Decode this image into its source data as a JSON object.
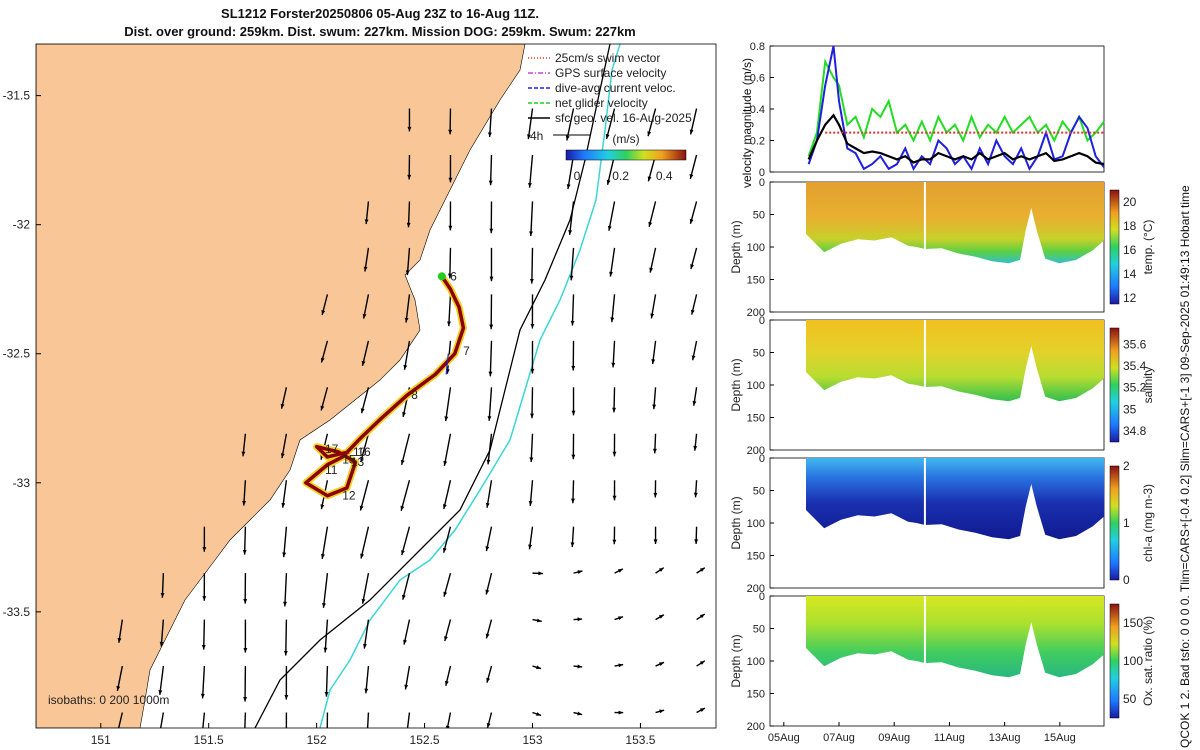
{
  "header": {
    "title_line1": "SL1212 Forster20250806 05-Aug 23Z to 16-Aug 11Z.",
    "title_line2": "Dist. over ground: 259km. Dist. swum: 227km. Mission DOG: 259km. Swum: 227km"
  },
  "side_note": "QCOK 1  2. Bad tsfo: 0  0  0  0. Tlim=CARS+[-0.4 0.2] Slim=CARS+[-1 3] 09-Sep-2025 01:49:13 Hobart time",
  "colors": {
    "land": "#f9c797",
    "sea": "#ffffff",
    "track_hot": "#8b0000",
    "track_warm": "#f0b020",
    "track_green": "#22cc22",
    "cyan_isobath": "#3ad6d6"
  },
  "chart_data": [
    {
      "type": "map",
      "name": "track-map",
      "x_ticks": [
        "151",
        "151.5",
        "152",
        "152.5",
        "153",
        "153.5"
      ],
      "x_tick_values": [
        151,
        151.5,
        152,
        152.5,
        153,
        153.5
      ],
      "y_ticks": [
        "-31.5",
        "-32",
        "-32.5",
        "-33",
        "-33.5"
      ],
      "y_tick_values": [
        -31.5,
        -32,
        -32.5,
        -33,
        -33.5
      ],
      "xlim": [
        150.7,
        153.85
      ],
      "ylim": [
        -33.95,
        -31.3
      ],
      "legend": [
        {
          "label": "25cm/s swim vector",
          "color": "#e03030",
          "style": "dotted"
        },
        {
          "label": "GPS surface velocity",
          "color": "#d040d0",
          "style": "dashdot"
        },
        {
          "label": "dive-avg current veloc.",
          "color": "#2020e0",
          "style": "dashed"
        },
        {
          "label": "net glider velocity",
          "color": "#22cc22",
          "style": "dashed"
        },
        {
          "label": "sfc geo. vel. 16-Aug-2025",
          "color": "#000000",
          "style": "arrow"
        }
      ],
      "scale_arrow_label": "4h",
      "colorbar": {
        "unit": "(m/s)",
        "ticks": [
          "0",
          "0.2",
          "0.4"
        ],
        "tick_values": [
          0,
          0.2,
          0.4
        ],
        "range": [
          -0.05,
          0.5
        ]
      },
      "isobath_label": "isobaths: 0  200  1000m",
      "waypoints": [
        {
          "label": "6",
          "lon": 152.6,
          "lat": -32.2
        },
        {
          "label": "7",
          "lon": 152.66,
          "lat": -32.49
        },
        {
          "label": "8",
          "lon": 152.42,
          "lat": -32.66
        },
        {
          "label": "10",
          "lon": 152.15,
          "lat": -32.88
        },
        {
          "label": "11",
          "lon": 152.02,
          "lat": -32.95
        },
        {
          "label": "12",
          "lon": 152.1,
          "lat": -33.05
        },
        {
          "label": "13",
          "lon": 152.14,
          "lat": -32.92
        },
        {
          "label": "15",
          "lon": 152.1,
          "lat": -32.91
        },
        {
          "label": "16",
          "lon": 152.17,
          "lat": -32.88
        },
        {
          "label": "17",
          "lon": 152.02,
          "lat": -32.87
        }
      ]
    },
    {
      "type": "line",
      "name": "velocity-magnitude",
      "ylabel": "velocity magnitude (m/s)",
      "ylim": [
        0,
        0.8
      ],
      "y_ticks": [
        "0",
        "0.2",
        "0.4",
        "0.6",
        "0.8"
      ],
      "y_tick_values": [
        0,
        0.2,
        0.4,
        0.6,
        0.8
      ],
      "xlim_days": [
        5,
        16.6
      ],
      "series": [
        {
          "name": "net glider velocity",
          "color": "#22dd22",
          "t": [
            5.9,
            6.2,
            6.5,
            6.8,
            7.0,
            7.3,
            7.6,
            7.9,
            8.2,
            8.5,
            8.8,
            9.1,
            9.4,
            9.7,
            10.0,
            10.3,
            10.6,
            10.9,
            11.2,
            11.5,
            11.8,
            12.1,
            12.4,
            12.7,
            13.0,
            13.3,
            13.6,
            13.9,
            14.2,
            14.5,
            14.8,
            15.1,
            15.4,
            15.7,
            16.0,
            16.3,
            16.6
          ],
          "v": [
            0.1,
            0.25,
            0.7,
            0.6,
            0.55,
            0.3,
            0.35,
            0.22,
            0.4,
            0.35,
            0.45,
            0.25,
            0.3,
            0.2,
            0.32,
            0.2,
            0.35,
            0.25,
            0.3,
            0.2,
            0.35,
            0.22,
            0.3,
            0.25,
            0.35,
            0.25,
            0.3,
            0.35,
            0.25,
            0.3,
            0.2,
            0.32,
            0.25,
            0.35,
            0.2,
            0.25,
            0.32
          ]
        },
        {
          "name": "dive-avg current veloc.",
          "color": "#1f1fdd",
          "t": [
            5.9,
            6.2,
            6.5,
            6.8,
            7.0,
            7.3,
            7.6,
            7.9,
            8.2,
            8.5,
            8.8,
            9.1,
            9.4,
            9.7,
            10.0,
            10.3,
            10.6,
            10.9,
            11.2,
            11.5,
            11.8,
            12.1,
            12.4,
            12.7,
            13.0,
            13.3,
            13.6,
            13.9,
            14.2,
            14.5,
            14.8,
            15.1,
            15.4,
            15.7,
            16.0,
            16.3,
            16.6
          ],
          "v": [
            0.05,
            0.2,
            0.55,
            0.8,
            0.45,
            0.15,
            0.12,
            0.02,
            0.05,
            0.1,
            0.02,
            0.05,
            0.15,
            0.02,
            0.1,
            0.05,
            0.2,
            0.15,
            0.05,
            0.1,
            0.02,
            0.15,
            0.05,
            0.2,
            0.1,
            0.05,
            0.15,
            0.02,
            0.1,
            0.25,
            0.08,
            0.1,
            0.25,
            0.35,
            0.28,
            0.1,
            0.03
          ]
        },
        {
          "name": "mean",
          "color": "#000000",
          "t": [
            5.9,
            6.2,
            6.5,
            6.8,
            7.0,
            7.3,
            7.6,
            7.9,
            8.2,
            8.5,
            8.8,
            9.1,
            9.4,
            9.7,
            10.0,
            10.3,
            10.6,
            10.9,
            11.2,
            11.5,
            11.8,
            12.1,
            12.4,
            12.7,
            13.0,
            13.3,
            13.6,
            13.9,
            14.2,
            14.5,
            14.8,
            15.1,
            15.4,
            15.7,
            16.0,
            16.3,
            16.6
          ],
          "v": [
            0.08,
            0.2,
            0.3,
            0.36,
            0.3,
            0.18,
            0.15,
            0.12,
            0.13,
            0.12,
            0.1,
            0.08,
            0.1,
            0.06,
            0.08,
            0.08,
            0.12,
            0.1,
            0.08,
            0.1,
            0.08,
            0.12,
            0.08,
            0.1,
            0.12,
            0.08,
            0.1,
            0.08,
            0.1,
            0.12,
            0.07,
            0.08,
            0.1,
            0.12,
            0.1,
            0.06,
            0.05
          ]
        },
        {
          "name": "25cm/s swim",
          "color": "#e03030",
          "t": [
            6.5,
            16.6
          ],
          "v": [
            0.25,
            0.25
          ]
        }
      ]
    },
    {
      "type": "heatmap",
      "name": "temperature-section",
      "ylabel": "Depth (m)",
      "colorbar_label": "temp. (°C)",
      "y_ticks": [
        "0",
        "50",
        "100",
        "150",
        "200"
      ],
      "cbar_ticks": [
        "20",
        "18",
        "16",
        "14",
        "12"
      ],
      "cbar_tick_values": [
        20,
        18,
        16,
        14,
        12
      ],
      "cbar_range": [
        11.5,
        21
      ]
    },
    {
      "type": "heatmap",
      "name": "salinity-section",
      "ylabel": "Depth (m)",
      "colorbar_label": "salinity",
      "y_ticks": [
        "0",
        "50",
        "100",
        "150",
        "200"
      ],
      "cbar_ticks": [
        "35.6",
        "35.4",
        "35.2",
        "35",
        "34.8"
      ],
      "cbar_tick_values": [
        35.6,
        35.4,
        35.2,
        35,
        34.8
      ],
      "cbar_range": [
        34.7,
        35.75
      ]
    },
    {
      "type": "heatmap",
      "name": "chla-section",
      "ylabel": "Depth (m)",
      "colorbar_label": "chl-a (mg m-3)",
      "y_ticks": [
        "0",
        "50",
        "100",
        "150",
        "200"
      ],
      "cbar_ticks": [
        "2",
        "1",
        "0"
      ],
      "cbar_tick_values": [
        2,
        1,
        0
      ],
      "cbar_range": [
        0,
        2
      ]
    },
    {
      "type": "heatmap",
      "name": "oxygen-section",
      "ylabel": "Depth (m)",
      "colorbar_label": "Ox. sat. ratio (%)",
      "y_ticks": [
        "0",
        "50",
        "100",
        "150",
        "200"
      ],
      "x_ticks": [
        "05Aug",
        "07Aug",
        "09Aug",
        "11Aug",
        "13Aug",
        "15Aug"
      ],
      "x_tick_values": [
        5,
        7,
        9,
        11,
        13,
        15
      ],
      "cbar_ticks": [
        "150",
        "100",
        "50"
      ],
      "cbar_tick_values": [
        150,
        100,
        50
      ],
      "cbar_range": [
        25,
        175
      ]
    }
  ]
}
